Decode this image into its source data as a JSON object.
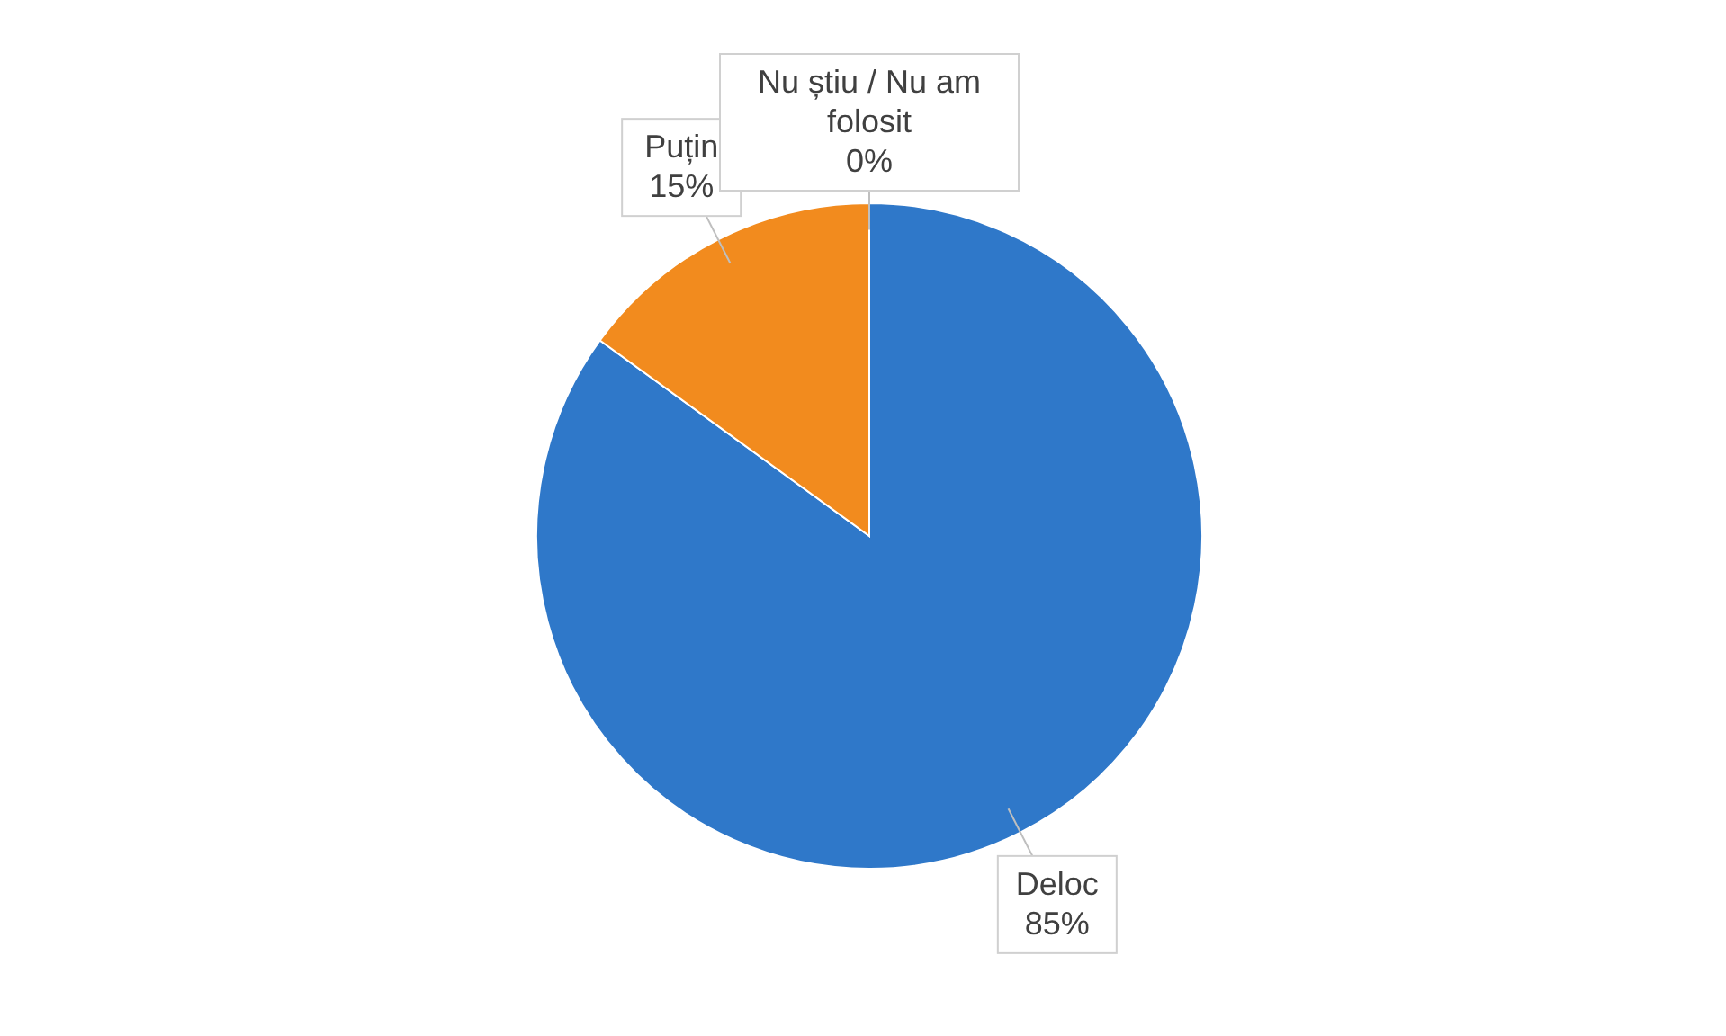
{
  "chart_data": {
    "type": "pie",
    "categories": [
      "Deloc",
      "Puțin",
      "Nu știu / Nu am folosit"
    ],
    "values": [
      85,
      15,
      0
    ],
    "value_labels": [
      "85%",
      "15%",
      "0%"
    ],
    "colors": [
      "#2f78c9",
      "#f28b1e",
      "#a5a5a5"
    ],
    "legend": false
  }
}
